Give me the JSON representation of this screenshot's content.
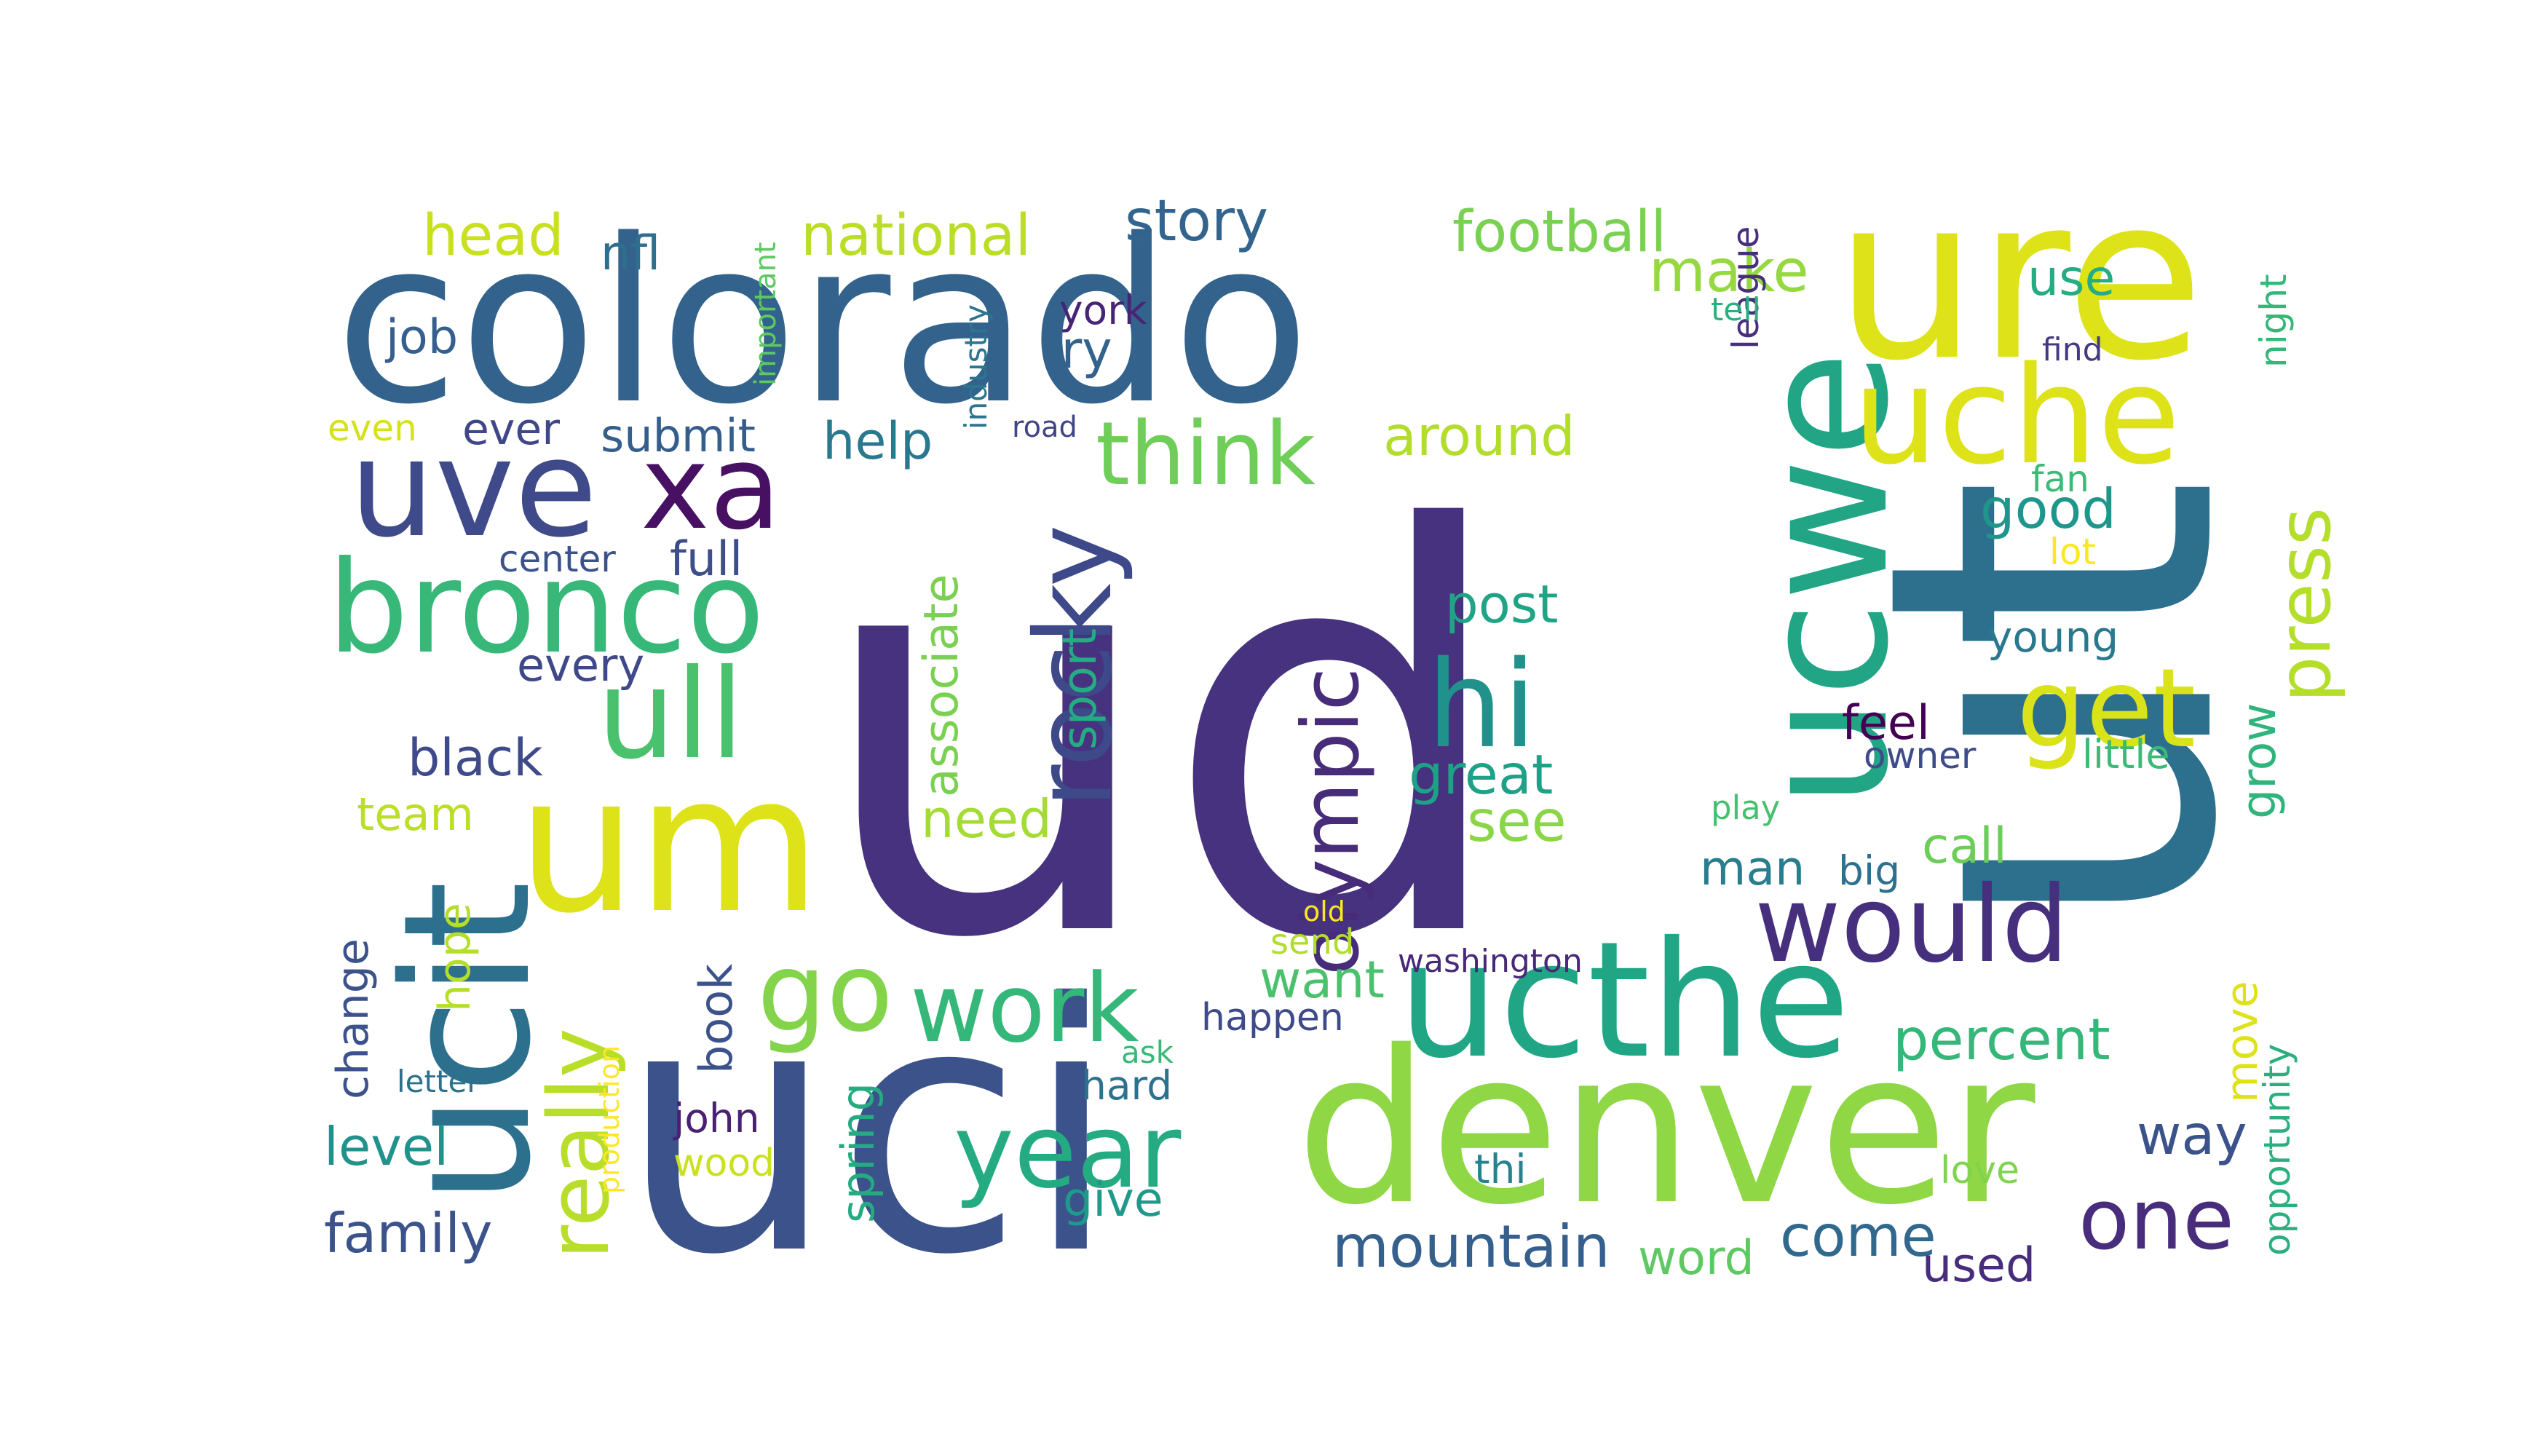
{
  "words": [
    {
      "text": "ud",
      "color": "#46327e",
      "rotate": false
    },
    {
      "text": "ut",
      "color": "#2d708e",
      "rotate": true
    },
    {
      "text": "uci",
      "color": "#3b528b",
      "rotate": false
    },
    {
      "text": "colorado",
      "color": "#33638d",
      "rotate": false
    },
    {
      "text": "ure",
      "color": "#dde318",
      "rotate": false
    },
    {
      "text": "denver",
      "color": "#8fd744",
      "rotate": false
    },
    {
      "text": "ucwe",
      "color": "#21a585",
      "rotate": true
    },
    {
      "text": "ucit",
      "color": "#2d708e",
      "rotate": true
    },
    {
      "text": "um",
      "color": "#dde318",
      "rotate": false
    },
    {
      "text": "ucthe",
      "color": "#21a685",
      "rotate": false
    },
    {
      "text": "uche",
      "color": "#dde318",
      "rotate": false
    },
    {
      "text": "uve",
      "color": "#3e4a89",
      "rotate": false
    },
    {
      "text": "xa",
      "color": "#471063",
      "rotate": false
    },
    {
      "text": "bronco",
      "color": "#37b878",
      "rotate": false
    },
    {
      "text": "rocky",
      "color": "#3e4989",
      "rotate": true
    },
    {
      "text": "ull",
      "color": "#4ac16d",
      "rotate": false
    },
    {
      "text": "hi",
      "color": "#21918c",
      "rotate": false
    },
    {
      "text": "would",
      "color": "#46307e",
      "rotate": false
    },
    {
      "text": "get",
      "color": "#dae319",
      "rotate": false
    },
    {
      "text": "think",
      "color": "#6ece58",
      "rotate": false
    },
    {
      "text": "olympic",
      "color": "#472c7a",
      "rotate": true
    },
    {
      "text": "press",
      "color": "#b5de2b",
      "rotate": true
    },
    {
      "text": "really",
      "color": "#b8de29",
      "rotate": true
    },
    {
      "text": "go",
      "color": "#84d44b",
      "rotate": false
    },
    {
      "text": "work",
      "color": "#35b779",
      "rotate": false
    },
    {
      "text": "year",
      "color": "#25ab82",
      "rotate": false
    },
    {
      "text": "one",
      "color": "#472d7b",
      "rotate": false
    },
    {
      "text": "national",
      "color": "#bade28",
      "rotate": false
    },
    {
      "text": "football",
      "color": "#7ad151",
      "rotate": false
    },
    {
      "text": "story",
      "color": "#32648e",
      "rotate": false
    },
    {
      "text": "head",
      "color": "#c8e020",
      "rotate": false
    },
    {
      "text": "nfl",
      "color": "#2e6f8e",
      "rotate": false
    },
    {
      "text": "job",
      "color": "#355f8d",
      "rotate": false
    },
    {
      "text": "make",
      "color": "#95d840",
      "rotate": false
    },
    {
      "text": "use",
      "color": "#25ac82",
      "rotate": false
    },
    {
      "text": "try",
      "color": "#33628d",
      "rotate": false
    },
    {
      "text": "york",
      "color": "#482475",
      "rotate": false
    },
    {
      "text": "league",
      "color": "#472f7d",
      "rotate": true
    },
    {
      "text": "find",
      "color": "#443a83",
      "rotate": false
    },
    {
      "text": "night",
      "color": "#35b779",
      "rotate": true
    },
    {
      "text": "tell",
      "color": "#2ab07f",
      "rotate": false
    },
    {
      "text": "important",
      "color": "#5ec962",
      "rotate": true
    },
    {
      "text": "industry",
      "color": "#2b758e",
      "rotate": true
    },
    {
      "text": "even",
      "color": "#d5e21a",
      "rotate": false
    },
    {
      "text": "ever",
      "color": "#3f4788",
      "rotate": false
    },
    {
      "text": "submit",
      "color": "#355e8d",
      "rotate": false
    },
    {
      "text": "help",
      "color": "#2a788e",
      "rotate": false
    },
    {
      "text": "around",
      "color": "#b2dd2d",
      "rotate": false
    },
    {
      "text": "road",
      "color": "#414487",
      "rotate": false
    },
    {
      "text": "fan",
      "color": "#3bbb75",
      "rotate": false
    },
    {
      "text": "good",
      "color": "#1f968b",
      "rotate": false
    },
    {
      "text": "lot",
      "color": "#fde725",
      "rotate": false
    },
    {
      "text": "full",
      "color": "#3d4e8a",
      "rotate": false
    },
    {
      "text": "center",
      "color": "#3b528b",
      "rotate": false
    },
    {
      "text": "associate",
      "color": "#7ad151",
      "rotate": true
    },
    {
      "text": "sport",
      "color": "#25ac82",
      "rotate": true
    },
    {
      "text": "post",
      "color": "#20a486",
      "rotate": false
    },
    {
      "text": "young",
      "color": "#2a788e",
      "rotate": false
    },
    {
      "text": "every",
      "color": "#3f4889",
      "rotate": false
    },
    {
      "text": "feel",
      "color": "#440154",
      "rotate": false
    },
    {
      "text": "owner",
      "color": "#3e4c8a",
      "rotate": false
    },
    {
      "text": "little",
      "color": "#3aba76",
      "rotate": false
    },
    {
      "text": "grow",
      "color": "#2fb47c",
      "rotate": true
    },
    {
      "text": "black",
      "color": "#3e4a89",
      "rotate": false
    },
    {
      "text": "great",
      "color": "#1fa188",
      "rotate": false
    },
    {
      "text": "play",
      "color": "#46c06f",
      "rotate": false
    },
    {
      "text": "team",
      "color": "#bbdf27",
      "rotate": false
    },
    {
      "text": "need",
      "color": "#a5db36",
      "rotate": false
    },
    {
      "text": "see",
      "color": "#8bd646",
      "rotate": false
    },
    {
      "text": "call",
      "color": "#6ccd5a",
      "rotate": false
    },
    {
      "text": "man",
      "color": "#287d8e",
      "rotate": false
    },
    {
      "text": "big",
      "color": "#2d718e",
      "rotate": false
    },
    {
      "text": "old",
      "color": "#fde725",
      "rotate": false
    },
    {
      "text": "send",
      "color": "#b0dd2f",
      "rotate": false
    },
    {
      "text": "hope",
      "color": "#b5de2b",
      "rotate": true
    },
    {
      "text": "change",
      "color": "#3b528b",
      "rotate": true
    },
    {
      "text": "want",
      "color": "#4ac16d",
      "rotate": false
    },
    {
      "text": "washington",
      "color": "#482878",
      "rotate": false
    },
    {
      "text": "percent",
      "color": "#35b779",
      "rotate": false
    },
    {
      "text": "move",
      "color": "#dde318",
      "rotate": true
    },
    {
      "text": "opportunity",
      "color": "#2ab07f",
      "rotate": true
    },
    {
      "text": "book",
      "color": "#3b528b",
      "rotate": true
    },
    {
      "text": "happen",
      "color": "#3e4a89",
      "rotate": false
    },
    {
      "text": "ask",
      "color": "#38b977",
      "rotate": false
    },
    {
      "text": "letter",
      "color": "#2d708e",
      "rotate": false
    },
    {
      "text": "hard",
      "color": "#2c728e",
      "rotate": false
    },
    {
      "text": "spring",
      "color": "#25ab82",
      "rotate": true
    },
    {
      "text": "production",
      "color": "#fde725",
      "rotate": true
    },
    {
      "text": "way",
      "color": "#3b528b",
      "rotate": false
    },
    {
      "text": "john",
      "color": "#482173",
      "rotate": false
    },
    {
      "text": "level",
      "color": "#21918c",
      "rotate": false
    },
    {
      "text": "wood",
      "color": "#cae11f",
      "rotate": false
    },
    {
      "text": "thi",
      "color": "#26828e",
      "rotate": false
    },
    {
      "text": "love",
      "color": "#7fd34e",
      "rotate": false
    },
    {
      "text": "give",
      "color": "#1f9a8a",
      "rotate": false
    },
    {
      "text": "family",
      "color": "#3b528b",
      "rotate": false
    },
    {
      "text": "mountain",
      "color": "#355f8d",
      "rotate": false
    },
    {
      "text": "word",
      "color": "#5ec962",
      "rotate": false
    },
    {
      "text": "come",
      "color": "#31688e",
      "rotate": false
    },
    {
      "text": "used",
      "color": "#472d7b",
      "rotate": false
    }
  ]
}
